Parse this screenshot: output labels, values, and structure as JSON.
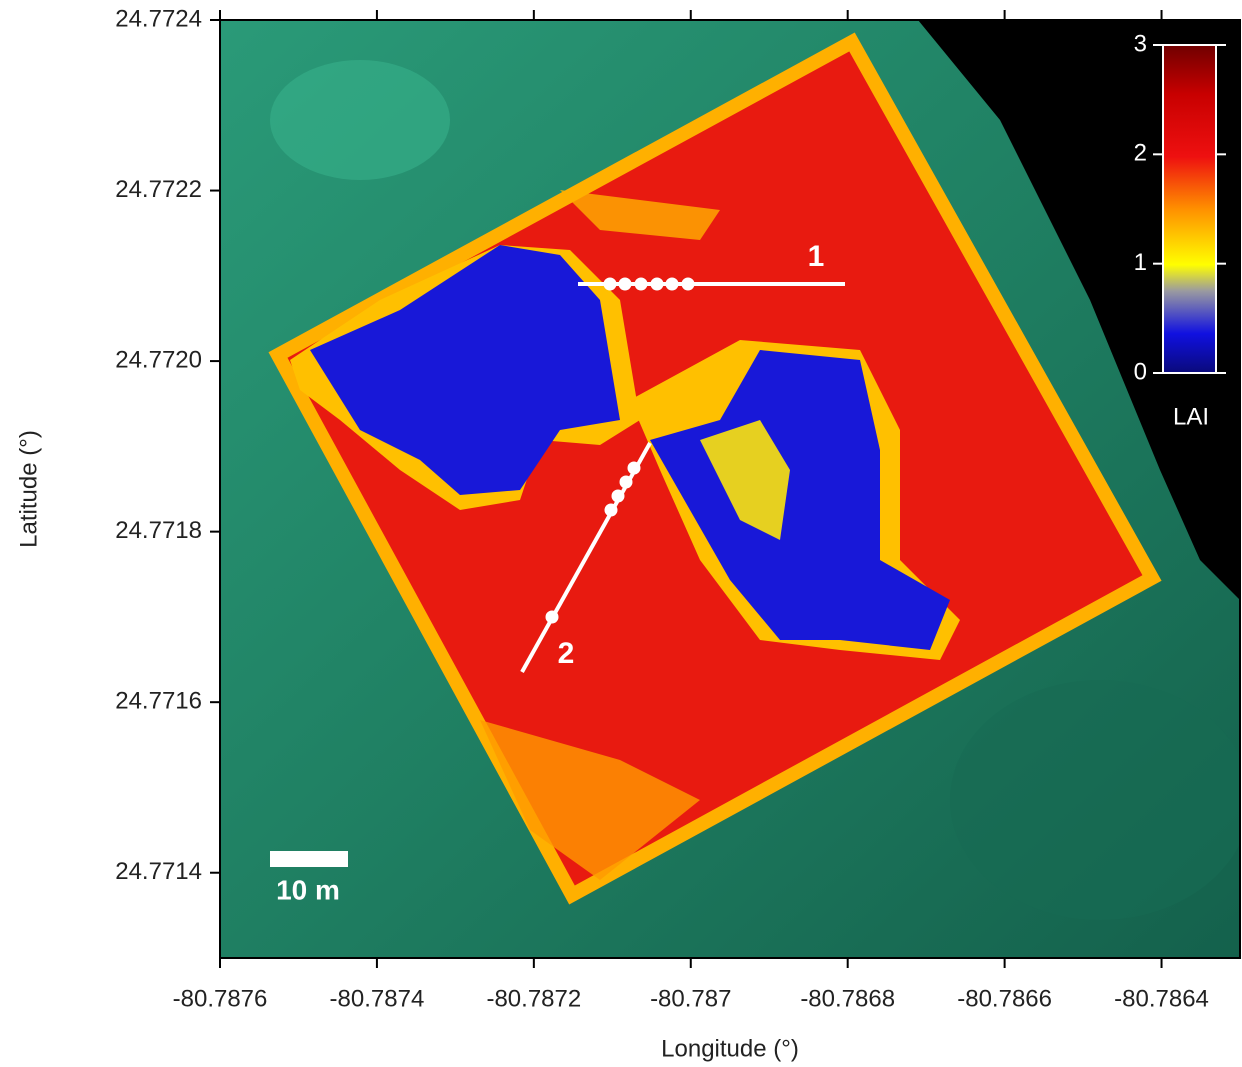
{
  "map": {
    "xlabel": "Longitude (°)",
    "ylabel": "Latitude (°)",
    "xlim": [
      -80.7876,
      -80.7863
    ],
    "ylim": [
      24.7713,
      24.7724
    ],
    "xticks": [
      -80.7876,
      -80.7874,
      -80.7872,
      -80.787,
      -80.7868,
      -80.7866,
      -80.7864
    ],
    "yticks": [
      24.7724,
      24.7722,
      {
        "value": 24.772,
        "label": "24.7720"
      },
      24.7718,
      24.7716,
      24.7714
    ],
    "colorbar": {
      "label": "LAI",
      "lim": [
        0,
        3
      ],
      "ticks": [
        0,
        1,
        2,
        3
      ]
    },
    "annotations": [
      "1",
      "2"
    ],
    "scale_bar": "10 m"
  }
}
